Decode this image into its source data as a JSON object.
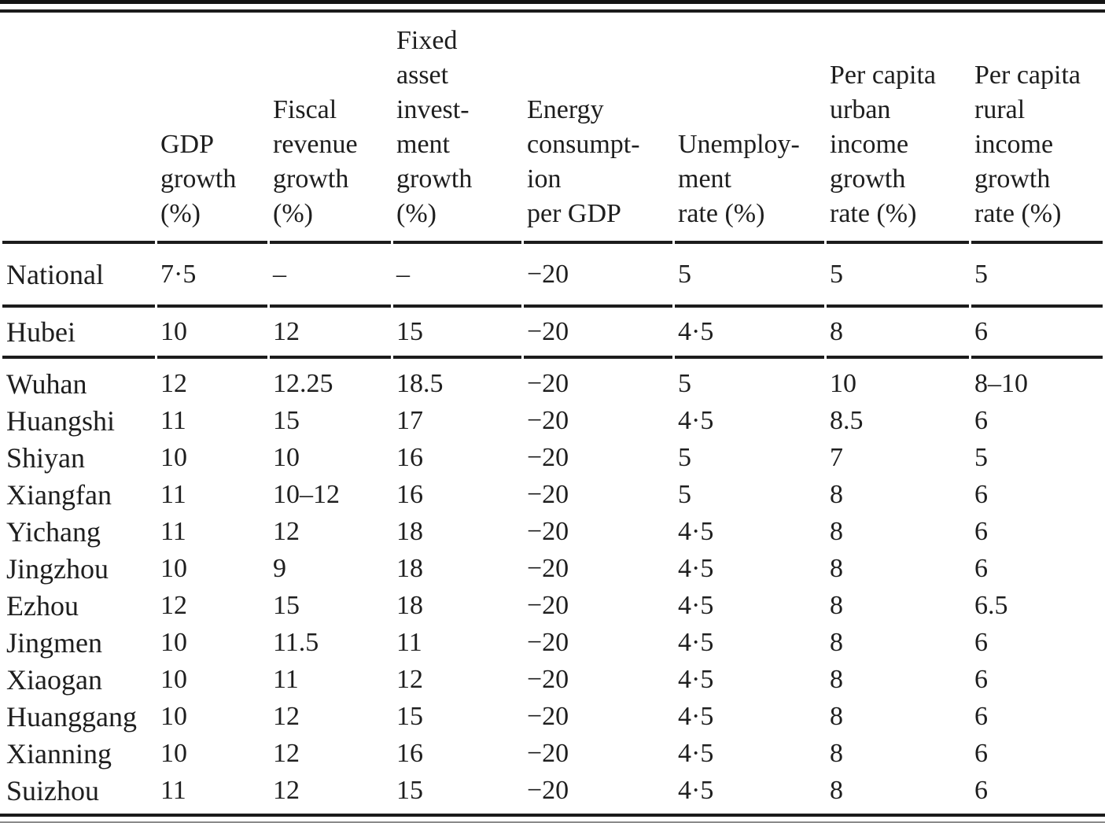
{
  "table": {
    "columns": [
      {
        "label": ""
      },
      {
        "label": "GDP\ngrowth\n(%)"
      },
      {
        "label": "Fiscal\nrevenue\ngrowth\n(%)"
      },
      {
        "label": "Fixed\nasset\ninvest-\nment\ngrowth\n(%)"
      },
      {
        "label": "Energy\nconsumpt-\nion\nper GDP"
      },
      {
        "label": "Unemploy-\nment\nrate (%)"
      },
      {
        "label": "Per capita\nurban\nincome\ngrowth\nrate (%)"
      },
      {
        "label": "Per capita\nrural\nincome\ngrowth\nrate (%)"
      }
    ],
    "rows": [
      {
        "name": "National",
        "section": "national",
        "values": [
          "7·5",
          "–",
          "–",
          "−20",
          "5",
          "5",
          "5"
        ]
      },
      {
        "name": "Hubei",
        "section": "province",
        "values": [
          "10",
          "12",
          "15",
          "−20",
          "4·5",
          "8",
          "6"
        ]
      },
      {
        "name": "Wuhan",
        "section": "city",
        "values": [
          "12",
          "12.25",
          "18.5",
          "−20",
          "5",
          "10",
          "8–10"
        ]
      },
      {
        "name": "Huangshi",
        "section": "city",
        "values": [
          "11",
          "15",
          "17",
          "−20",
          "4·5",
          "8.5",
          "6"
        ]
      },
      {
        "name": "Shiyan",
        "section": "city",
        "values": [
          "10",
          "10",
          "16",
          "−20",
          "5",
          "7",
          "5"
        ]
      },
      {
        "name": "Xiangfan",
        "section": "city",
        "values": [
          "11",
          "10–12",
          "16",
          "−20",
          "5",
          "8",
          "6"
        ]
      },
      {
        "name": "Yichang",
        "section": "city",
        "values": [
          "11",
          "12",
          "18",
          "−20",
          "4·5",
          "8",
          "6"
        ]
      },
      {
        "name": "Jingzhou",
        "section": "city",
        "values": [
          "10",
          "9",
          "18",
          "−20",
          "4·5",
          "8",
          "6"
        ]
      },
      {
        "name": "Ezhou",
        "section": "city",
        "values": [
          "12",
          "15",
          "18",
          "−20",
          "4·5",
          "8",
          "6.5"
        ]
      },
      {
        "name": "Jingmen",
        "section": "city",
        "values": [
          "10",
          "11.5",
          "11",
          "−20",
          "4·5",
          "8",
          "6"
        ]
      },
      {
        "name": "Xiaogan",
        "section": "city",
        "values": [
          "10",
          "11",
          "12",
          "−20",
          "4·5",
          "8",
          "6"
        ]
      },
      {
        "name": "Huanggang",
        "section": "city",
        "values": [
          "10",
          "12",
          "15",
          "−20",
          "4·5",
          "8",
          "6"
        ]
      },
      {
        "name": "Xianning",
        "section": "city",
        "values": [
          "10",
          "12",
          "16",
          "−20",
          "4·5",
          "8",
          "6"
        ]
      },
      {
        "name": "Suizhou",
        "section": "city",
        "values": [
          "11",
          "12",
          "15",
          "−20",
          "4·5",
          "8",
          "6"
        ]
      }
    ],
    "ink_color": "#1e1e1e",
    "rule_color": "#1c1c1c"
  }
}
